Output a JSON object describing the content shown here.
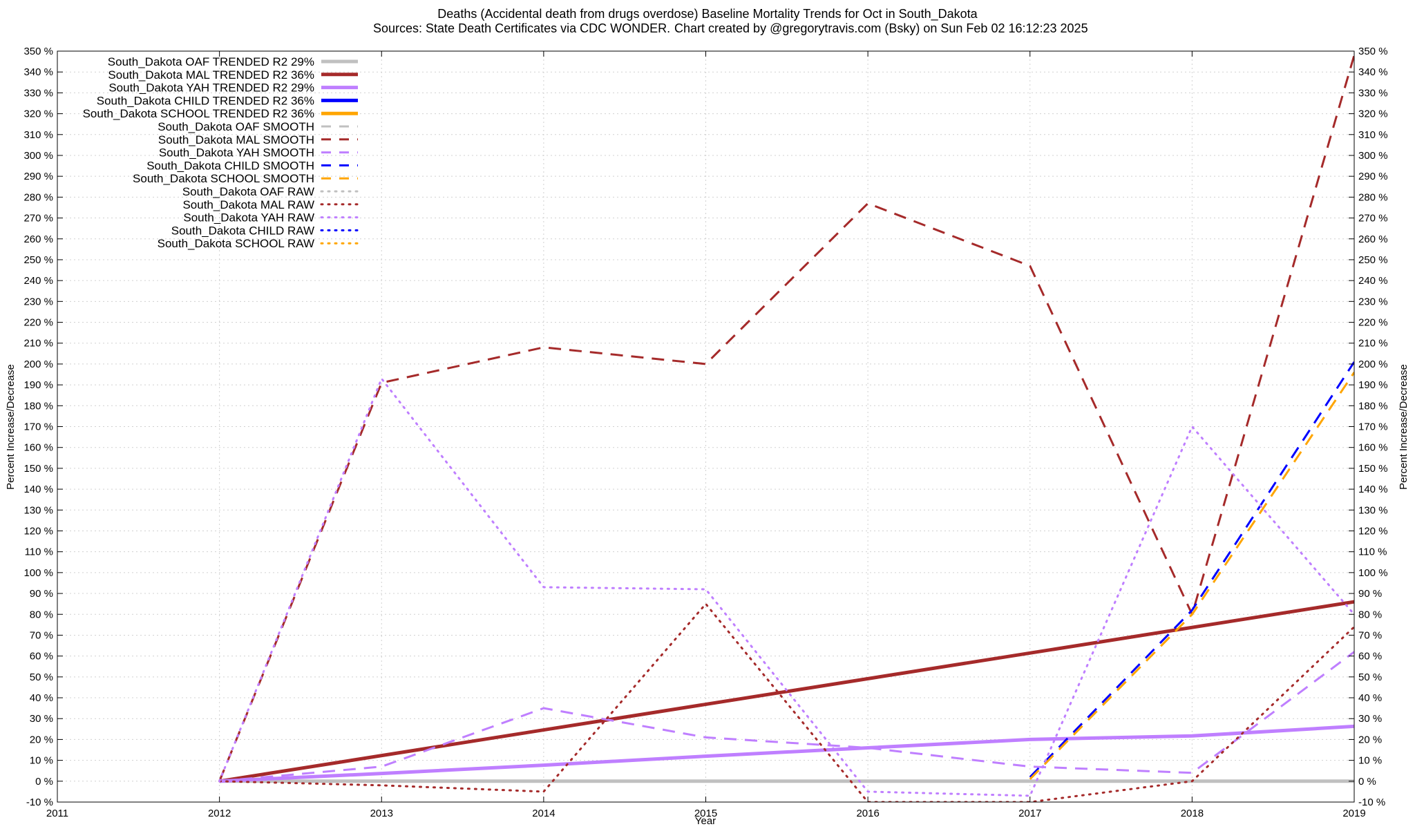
{
  "chart_data": {
    "type": "line",
    "title_line1": "Deaths (Accidental death from drugs overdose)  Baseline Mortality Trends for Oct in South_Dakota",
    "title_line2_left": "Sources: State Death Certificates via CDC WONDER.",
    "title_line2_right": "Chart created by @gregorytravis.com (Bsky) on Sun Feb 02 16:12:23 2025",
    "xlabel": "Year",
    "ylabel": "Percent Increase/Decrease",
    "xlim": [
      2011,
      2019
    ],
    "ylim": [
      -10,
      350
    ],
    "x_ticks": [
      "2011",
      "2012",
      "2013",
      "2014",
      "2015",
      "2016",
      "2017",
      "2018",
      "2019"
    ],
    "y_ticks": [
      "-10 %",
      "0 %",
      "10 %",
      "20 %",
      "30 %",
      "40 %",
      "50 %",
      "60 %",
      "70 %",
      "80 %",
      "90 %",
      "100 %",
      "110 %",
      "120 %",
      "130 %",
      "140 %",
      "150 %",
      "160 %",
      "170 %",
      "180 %",
      "190 %",
      "200 %",
      "210 %",
      "220 %",
      "230 %",
      "240 %",
      "250 %",
      "260 %",
      "270 %",
      "280 %",
      "290 %",
      "300 %",
      "310 %",
      "320 %",
      "330 %",
      "340 %",
      "350 %"
    ],
    "grid": true,
    "legend_position": "top-left",
    "series": [
      {
        "name": "South_Dakota OAF TRENDED R2  29%",
        "style": "solid",
        "color": "#c0c0c0",
        "width": 5,
        "points": [
          [
            2012,
            0
          ],
          [
            2019,
            0
          ]
        ]
      },
      {
        "name": "South_Dakota MAL TRENDED R2  36%",
        "style": "solid",
        "color": "#a52a2a",
        "width": 5,
        "points": [
          [
            2012,
            0
          ],
          [
            2019,
            86
          ]
        ]
      },
      {
        "name": "South_Dakota YAH TRENDED R2  29%",
        "style": "solid",
        "color": "#bf7fff",
        "width": 5,
        "points": [
          [
            2012,
            0
          ],
          [
            2013,
            3.7
          ],
          [
            2014,
            7.7
          ],
          [
            2015,
            12
          ],
          [
            2016,
            16
          ],
          [
            2017,
            20
          ],
          [
            2018,
            21.7
          ],
          [
            2019,
            26.3
          ]
        ]
      },
      {
        "name": "South_Dakota CHILD TRENDED R2  36%",
        "style": "solid",
        "color": "#0000ff",
        "width": 5,
        "points": []
      },
      {
        "name": "South_Dakota SCHOOL TRENDED R2  36%",
        "style": "solid",
        "color": "#ffa500",
        "width": 5,
        "points": []
      },
      {
        "name": "South_Dakota OAF SMOOTH",
        "style": "dash",
        "color": "#c0c0c0",
        "width": 3,
        "points": []
      },
      {
        "name": "South_Dakota MAL SMOOTH",
        "style": "dash",
        "color": "#a52a2a",
        "width": 3,
        "points": [
          [
            2012,
            0
          ],
          [
            2013,
            191
          ],
          [
            2014,
            208
          ],
          [
            2015,
            200
          ],
          [
            2016,
            277
          ],
          [
            2017,
            247
          ],
          [
            2018,
            80
          ],
          [
            2019,
            348
          ]
        ]
      },
      {
        "name": "South_Dakota YAH SMOOTH",
        "style": "dash",
        "color": "#bf7fff",
        "width": 3,
        "points": [
          [
            2012,
            0
          ],
          [
            2013,
            7
          ],
          [
            2014,
            35
          ],
          [
            2015,
            21
          ],
          [
            2016,
            16
          ],
          [
            2017,
            7
          ],
          [
            2018,
            4
          ],
          [
            2019,
            62
          ]
        ]
      },
      {
        "name": "South_Dakota CHILD SMOOTH",
        "style": "dash",
        "color": "#0000ff",
        "width": 3,
        "points": [
          [
            2017,
            2
          ],
          [
            2018,
            82
          ],
          [
            2019,
            201
          ]
        ]
      },
      {
        "name": "South_Dakota SCHOOL SMOOTH",
        "style": "dash",
        "color": "#ffa500",
        "width": 3,
        "points": [
          [
            2017,
            1
          ],
          [
            2018,
            80
          ],
          [
            2019,
            196
          ]
        ]
      },
      {
        "name": "South_Dakota OAF RAW",
        "style": "dot",
        "color": "#c0c0c0",
        "width": 3,
        "points": []
      },
      {
        "name": "South_Dakota MAL RAW",
        "style": "dot",
        "color": "#a52a2a",
        "width": 3,
        "points": [
          [
            2012,
            0
          ],
          [
            2013,
            -2
          ],
          [
            2014,
            -5
          ],
          [
            2015,
            85
          ],
          [
            2016,
            -10
          ],
          [
            2017,
            -10
          ],
          [
            2018,
            0
          ],
          [
            2019,
            74
          ]
        ]
      },
      {
        "name": "South_Dakota YAH RAW",
        "style": "dot",
        "color": "#bf7fff",
        "width": 3,
        "points": [
          [
            2012,
            0
          ],
          [
            2013,
            193
          ],
          [
            2014,
            93
          ],
          [
            2015,
            92
          ],
          [
            2016,
            -5
          ],
          [
            2017,
            -7
          ],
          [
            2018,
            170
          ],
          [
            2019,
            80
          ]
        ]
      },
      {
        "name": "South_Dakota CHILD RAW",
        "style": "dot",
        "color": "#0000ff",
        "width": 3,
        "points": []
      },
      {
        "name": "South_Dakota SCHOOL RAW",
        "style": "dot",
        "color": "#ffa500",
        "width": 3,
        "points": []
      }
    ]
  }
}
